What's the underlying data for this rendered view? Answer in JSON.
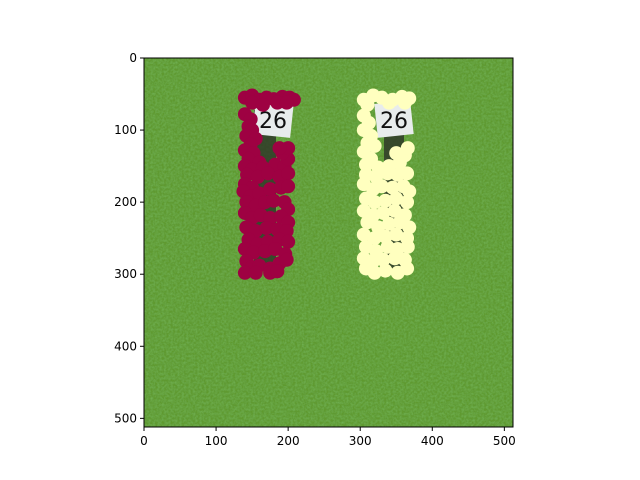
{
  "chart_data": {
    "type": "scatter",
    "background": "photo of green grass field with two numbered markers reading 26",
    "xlim": [
      0,
      512
    ],
    "ylim": [
      512,
      0
    ],
    "x_ticks": [
      0,
      100,
      200,
      300,
      400,
      500
    ],
    "y_ticks": [
      0,
      100,
      200,
      300,
      400,
      500
    ],
    "photo_labels": [
      "26",
      "26"
    ],
    "series": [
      {
        "color": "#9e0142",
        "points": [
          [
            140,
            55
          ],
          [
            150,
            52
          ],
          [
            160,
            58
          ],
          [
            170,
            55
          ],
          [
            180,
            57
          ],
          [
            192,
            54
          ],
          [
            202,
            55
          ],
          [
            208,
            58
          ],
          [
            150,
            62
          ],
          [
            165,
            65
          ],
          [
            185,
            62
          ],
          [
            198,
            62
          ],
          [
            140,
            78
          ],
          [
            148,
            85
          ],
          [
            145,
            95
          ],
          [
            150,
            100
          ],
          [
            142,
            108
          ],
          [
            155,
            112
          ],
          [
            148,
            120
          ],
          [
            140,
            128
          ],
          [
            152,
            132
          ],
          [
            145,
            140
          ],
          [
            160,
            145
          ],
          [
            140,
            150
          ],
          [
            150,
            155
          ],
          [
            165,
            152
          ],
          [
            182,
            148
          ],
          [
            195,
            150
          ],
          [
            200,
            140
          ],
          [
            192,
            132
          ],
          [
            200,
            125
          ],
          [
            188,
            125
          ],
          [
            143,
            162
          ],
          [
            158,
            165
          ],
          [
            172,
            160
          ],
          [
            188,
            165
          ],
          [
            200,
            160
          ],
          [
            140,
            175
          ],
          [
            150,
            180
          ],
          [
            138,
            185
          ],
          [
            148,
            192
          ],
          [
            160,
            188
          ],
          [
            175,
            182
          ],
          [
            190,
            180
          ],
          [
            200,
            178
          ],
          [
            142,
            200
          ],
          [
            155,
            205
          ],
          [
            168,
            200
          ],
          [
            180,
            198
          ],
          [
            195,
            200
          ],
          [
            200,
            210
          ],
          [
            140,
            215
          ],
          [
            150,
            222
          ],
          [
            162,
            218
          ],
          [
            175,
            222
          ],
          [
            190,
            220
          ],
          [
            200,
            228
          ],
          [
            142,
            235
          ],
          [
            155,
            240
          ],
          [
            170,
            236
          ],
          [
            185,
            238
          ],
          [
            198,
            240
          ],
          [
            145,
            252
          ],
          [
            158,
            258
          ],
          [
            172,
            255
          ],
          [
            188,
            252
          ],
          [
            200,
            255
          ],
          [
            140,
            265
          ],
          [
            152,
            270
          ],
          [
            168,
            268
          ],
          [
            182,
            265
          ],
          [
            196,
            272
          ],
          [
            142,
            282
          ],
          [
            150,
            290
          ],
          [
            160,
            288
          ],
          [
            175,
            292
          ],
          [
            188,
            285
          ],
          [
            198,
            280
          ],
          [
            140,
            298
          ],
          [
            155,
            298
          ],
          [
            175,
            298
          ],
          [
            185,
            296
          ]
        ]
      },
      {
        "color": "#ffffbf",
        "points": [
          [
            305,
            58
          ],
          [
            318,
            52
          ],
          [
            330,
            55
          ],
          [
            345,
            58
          ],
          [
            358,
            54
          ],
          [
            368,
            56
          ],
          [
            310,
            65
          ],
          [
            340,
            62
          ],
          [
            362,
            62
          ],
          [
            305,
            80
          ],
          [
            312,
            90
          ],
          [
            305,
            100
          ],
          [
            315,
            108
          ],
          [
            310,
            118
          ],
          [
            320,
            122
          ],
          [
            305,
            130
          ],
          [
            315,
            140
          ],
          [
            308,
            148
          ],
          [
            325,
            152
          ],
          [
            340,
            150
          ],
          [
            355,
            145
          ],
          [
            362,
            135
          ],
          [
            366,
            125
          ],
          [
            350,
            132
          ],
          [
            308,
            162
          ],
          [
            322,
            165
          ],
          [
            338,
            160
          ],
          [
            352,
            162
          ],
          [
            365,
            160
          ],
          [
            305,
            175
          ],
          [
            318,
            182
          ],
          [
            330,
            178
          ],
          [
            345,
            180
          ],
          [
            360,
            178
          ],
          [
            368,
            185
          ],
          [
            308,
            195
          ],
          [
            320,
            200
          ],
          [
            335,
            198
          ],
          [
            350,
            195
          ],
          [
            365,
            200
          ],
          [
            305,
            212
          ],
          [
            318,
            218
          ],
          [
            332,
            215
          ],
          [
            348,
            212
          ],
          [
            362,
            218
          ],
          [
            310,
            228
          ],
          [
            325,
            235
          ],
          [
            340,
            230
          ],
          [
            355,
            228
          ],
          [
            368,
            235
          ],
          [
            305,
            245
          ],
          [
            320,
            250
          ],
          [
            335,
            248
          ],
          [
            350,
            245
          ],
          [
            365,
            250
          ],
          [
            308,
            262
          ],
          [
            322,
            268
          ],
          [
            338,
            262
          ],
          [
            352,
            265
          ],
          [
            366,
            262
          ],
          [
            305,
            278
          ],
          [
            318,
            282
          ],
          [
            332,
            280
          ],
          [
            348,
            278
          ],
          [
            362,
            280
          ],
          [
            308,
            292
          ],
          [
            320,
            298
          ],
          [
            335,
            295
          ],
          [
            352,
            298
          ],
          [
            365,
            292
          ]
        ]
      }
    ]
  }
}
